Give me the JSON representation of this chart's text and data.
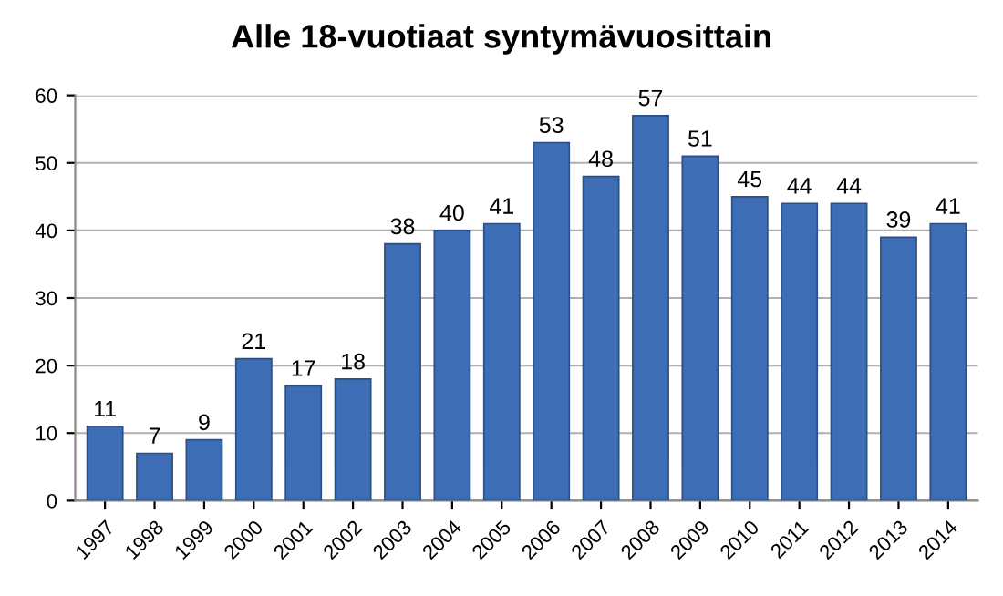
{
  "chart_data": {
    "type": "bar",
    "title": "Alle 18-vuotiaat syntymävuosittain",
    "categories": [
      "1997",
      "1998",
      "1999",
      "2000",
      "2001",
      "2002",
      "2003",
      "2004",
      "2005",
      "2006",
      "2007",
      "2008",
      "2009",
      "2010",
      "2011",
      "2012",
      "2013",
      "2014"
    ],
    "values": [
      11,
      7,
      9,
      21,
      17,
      18,
      38,
      40,
      41,
      53,
      48,
      57,
      51,
      45,
      44,
      44,
      39,
      41
    ],
    "color": "#3d6db5",
    "ylim": [
      0,
      60
    ],
    "yticks": [
      0,
      10,
      20,
      30,
      40,
      50,
      60
    ],
    "grid": "y",
    "data_labels": true
  }
}
